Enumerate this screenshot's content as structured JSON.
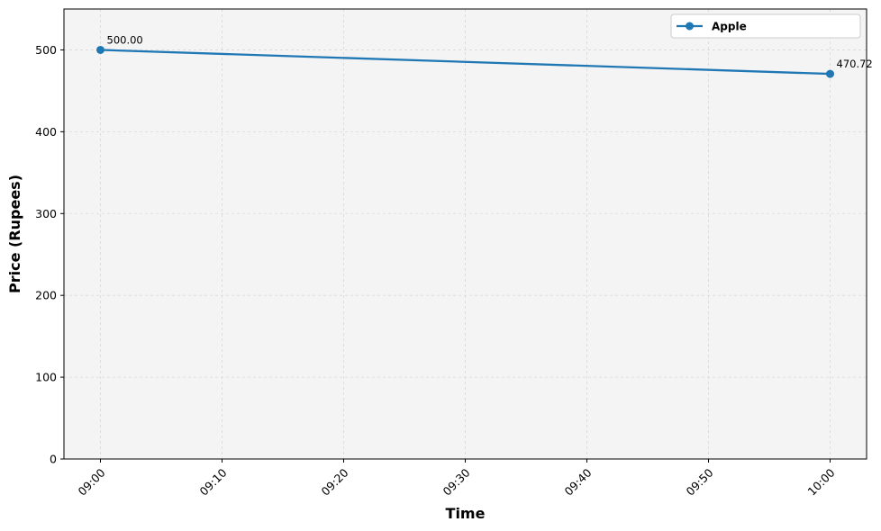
{
  "chart_data": {
    "type": "line",
    "title": "",
    "xlabel": "Time",
    "ylabel": "Price (Rupees)",
    "x": [
      "09:00",
      "10:00"
    ],
    "x_minutes_labels": [
      "09:00",
      "09:10",
      "09:20",
      "09:30",
      "09:40",
      "09:50",
      "10:00"
    ],
    "ylim": [
      0,
      550
    ],
    "yticks": [
      0,
      100,
      200,
      300,
      400,
      500
    ],
    "grid": true,
    "legend_position": "top-right",
    "series": [
      {
        "name": "Apple",
        "color": "#1f77b4",
        "x": [
          "09:00",
          "10:00"
        ],
        "values": [
          500.0,
          470.72
        ],
        "data_labels": [
          "500.00",
          "470.72"
        ]
      }
    ]
  },
  "colors": {
    "plot_background": "#f4f4f4",
    "grid": "#d9d9d9",
    "series": "#1f77b4"
  }
}
